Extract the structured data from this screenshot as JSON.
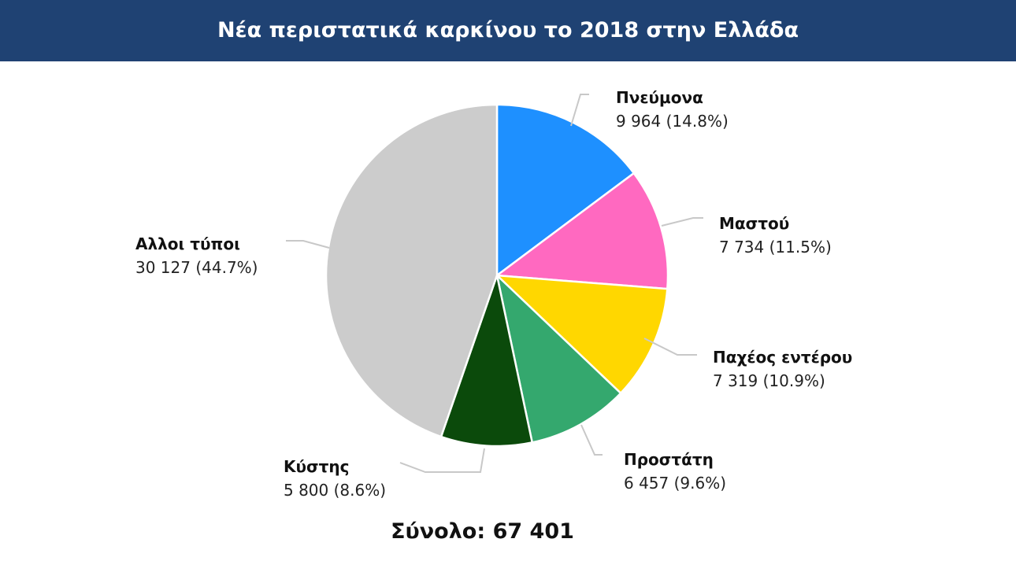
{
  "title": "Νέα περιστατικά καρκίνου το 2018 στην Ελλάδα",
  "total": {
    "label": "Σύνολο:",
    "value": "67 401"
  },
  "chart_data": {
    "type": "pie",
    "title": "Νέα περιστατικά καρκίνου το 2018 στην Ελλάδα",
    "total": 67401,
    "slices": [
      {
        "name": "Πνεύμονα",
        "value": 9964,
        "percent": 14.8,
        "value_text": "9 964 (14.8%)",
        "color": "#1e90ff"
      },
      {
        "name": "Μαστού",
        "value": 7734,
        "percent": 11.5,
        "value_text": "7 734 (11.5%)",
        "color": "#ff69c0"
      },
      {
        "name": "Παχέος εντέρου",
        "value": 7319,
        "percent": 10.9,
        "value_text": "7 319 (10.9%)",
        "color": "#ffd700"
      },
      {
        "name": "Προστάτη",
        "value": 6457,
        "percent": 9.6,
        "value_text": "6 457 (9.6%)",
        "color": "#34a86e"
      },
      {
        "name": "Κύστης",
        "value": 5800,
        "percent": 8.6,
        "value_text": "5 800 (8.6%)",
        "color": "#0b4a0b"
      },
      {
        "name": "Αλλοι τύποι",
        "value": 30127,
        "percent": 44.7,
        "value_text": "30 127 (44.7%)",
        "color": "#cccccc"
      }
    ],
    "leader_line_color": "#c8c8c8"
  }
}
